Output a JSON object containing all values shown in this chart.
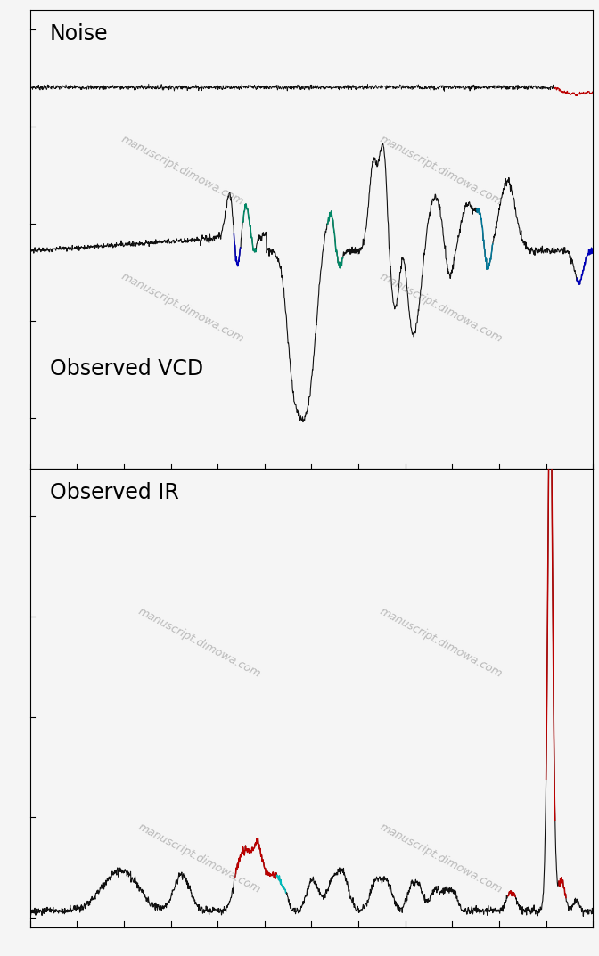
{
  "background_color": "#f5f5f5",
  "panel1_label": "Noise",
  "panel2_label": "Observed VCD",
  "panel3_label": "Observed IR",
  "watermark_text": "manuscript.dimowa.com",
  "fig_width": 6.72,
  "fig_height": 10.73,
  "dpi": 100,
  "noise_color": "#111111",
  "noise_red_color": "#bb0000",
  "vcd_color_main": "#111111",
  "vcd_color_green": "#008866",
  "vcd_color_blue": "#0000bb",
  "vcd_color_cyan": "#007799",
  "ir_color_main": "#111111",
  "ir_color_red": "#bb0000",
  "ir_color_cyan": "#00bbbb"
}
